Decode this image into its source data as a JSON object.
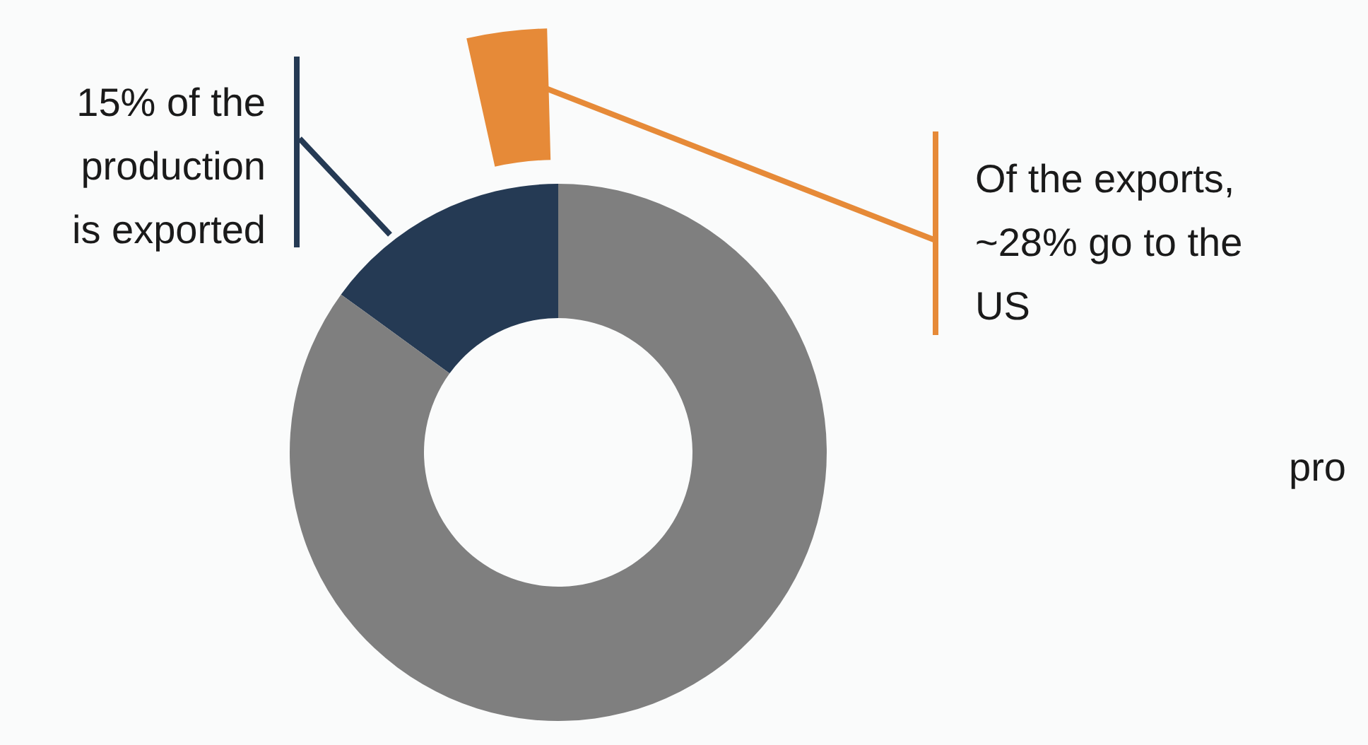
{
  "chart_data": {
    "type": "donut",
    "categories": [
      null,
      null
    ],
    "values": [
      15,
      85
    ],
    "colors": [
      "#253a54",
      "#7f7f7f"
    ],
    "annotations": [
      "15% of the production is exported",
      "Of the exports, ~28% go to the US",
      "pro"
    ]
  }
}
